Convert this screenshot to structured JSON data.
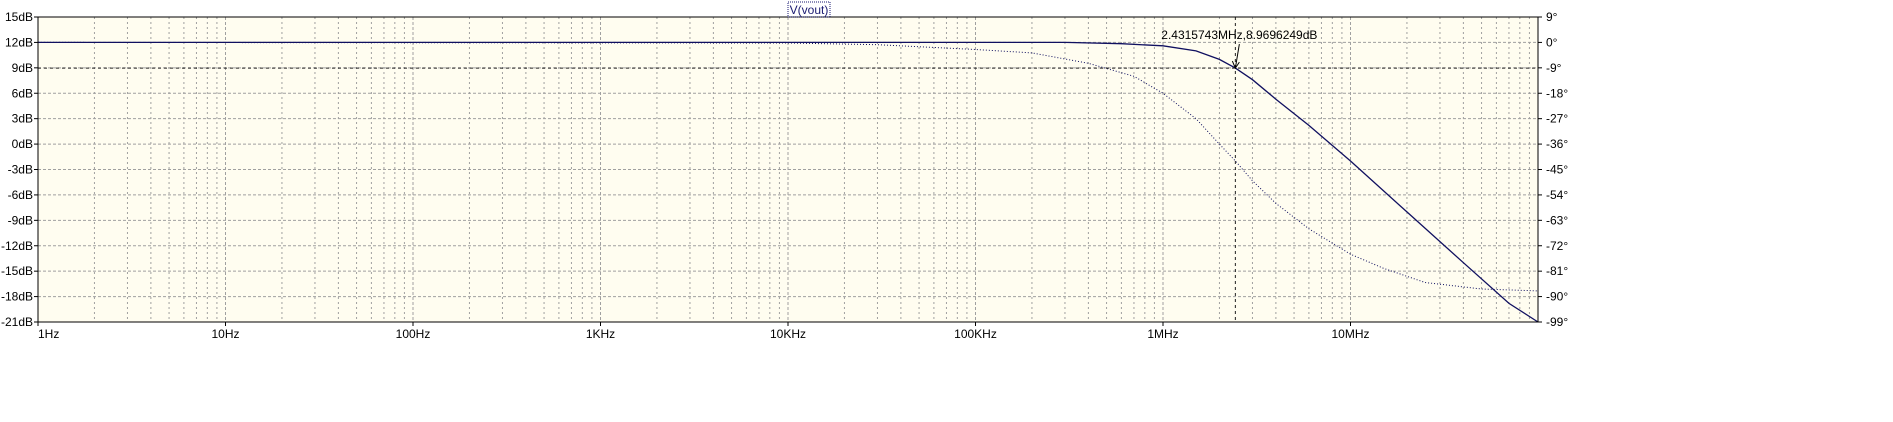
{
  "chart_data": {
    "type": "line",
    "title": "V(vout)",
    "x_scale": "log",
    "x_range_hz": [
      1,
      100000000
    ],
    "x_tick_labels": [
      "1Hz",
      "10Hz",
      "100Hz",
      "1KHz",
      "10KHz",
      "100KHz",
      "1MHz",
      "10MHz"
    ],
    "x_tick_values": [
      1,
      10,
      100,
      1000,
      10000,
      100000,
      1000000,
      10000000
    ],
    "y_left": {
      "unit": "dB",
      "range": [
        -21,
        15
      ],
      "ticks": [
        15,
        12,
        9,
        6,
        3,
        0,
        -3,
        -6,
        -9,
        -12,
        -15,
        -18,
        -21
      ],
      "tick_labels": [
        "15dB",
        "12dB",
        "9dB",
        "6dB",
        "3dB",
        "0dB",
        "-3dB",
        "-6dB",
        "-9dB",
        "-12dB",
        "-15dB",
        "-18dB",
        "-21dB"
      ]
    },
    "y_right": {
      "unit": "degrees",
      "range": [
        -99,
        9
      ],
      "ticks": [
        9,
        0,
        -9,
        -18,
        -27,
        -36,
        -45,
        -54,
        -63,
        -72,
        -81,
        -90,
        -99
      ],
      "tick_labels": [
        "9°",
        "0°",
        "-9°",
        "-18°",
        "-27°",
        "-36°",
        "-45°",
        "-54°",
        "-63°",
        "-72°",
        "-81°",
        "-90°",
        "-99°"
      ]
    },
    "grid": true,
    "colors": {
      "background": "#fffdf0",
      "grid": "#a0a0a0",
      "trace": "#101060",
      "cursor": "#202020"
    },
    "series": [
      {
        "style": "solid",
        "axis": "left",
        "x": [
          1,
          10000,
          100000,
          300000,
          600000,
          1000000,
          1500000,
          2000000,
          2431574,
          3000000,
          4000000,
          6000000,
          10000000,
          20000000,
          40000000,
          70000000,
          100000000
        ],
        "y": [
          12,
          12,
          12,
          12,
          11.85,
          11.6,
          11.0,
          10.0,
          8.97,
          7.6,
          5.3,
          2.2,
          -2.0,
          -8.0,
          -14.0,
          -18.8,
          -21.0
        ]
      },
      {
        "style": "dotted",
        "axis": "right",
        "x": [
          1,
          10000,
          30000,
          100000,
          200000,
          400000,
          700000,
          1000000,
          1500000,
          2000000,
          2431574,
          3000000,
          4000000,
          6000000,
          10000000,
          15000000,
          25000000,
          50000000,
          100000000
        ],
        "y": [
          0,
          -0.2,
          -0.8,
          -2.5,
          -3.7,
          -7.4,
          -12.0,
          -18.0,
          -27.0,
          -36.0,
          -42.0,
          -49.0,
          -57.0,
          -66.0,
          -75.0,
          -80.0,
          -85.0,
          -87.3,
          -88.0
        ]
      }
    ],
    "cursor": {
      "x_hz": 2431574.3,
      "y_db": 8.9696249,
      "label": "2.4315743MHz,8.9696249dB"
    }
  }
}
